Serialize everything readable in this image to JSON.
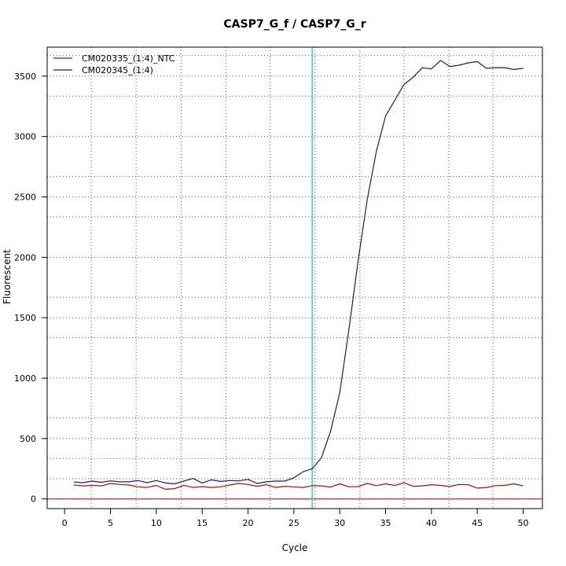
{
  "chart_data": {
    "type": "line",
    "title": "CASP7_G_f / CASP7_G_r",
    "xlabel": "Cycle",
    "ylabel": "Fluorescent",
    "xlim": [
      -1.9,
      52.1
    ],
    "ylim": [
      -80,
      3740
    ],
    "x_ticks": [
      0,
      5,
      10,
      15,
      20,
      25,
      30,
      35,
      40,
      45,
      50
    ],
    "y_ticks": [
      0,
      500,
      1000,
      1500,
      2000,
      2500,
      3000,
      3500
    ],
    "x_grid": [
      2.9,
      7.8,
      12.7,
      17.6,
      22.4,
      27.3,
      32.2,
      37.0,
      41.9,
      46.7
    ],
    "y_grid": [
      0,
      167,
      335,
      500,
      670,
      1000,
      1335,
      1500,
      1670,
      2000,
      2335,
      2500,
      2670,
      3000,
      3335,
      3500,
      3670
    ],
    "grid": true,
    "legend_position": "top-left",
    "threshold": {
      "x": 27,
      "color": "#00e5e5"
    },
    "baseline": {
      "y": 0,
      "color": "#b00000"
    },
    "series": [
      {
        "name": "CM020335_(1:4)_NTC",
        "color": "#a01010",
        "x": [
          1,
          2,
          3,
          4,
          5,
          6,
          7,
          8,
          9,
          10,
          11,
          12,
          13,
          14,
          15,
          16,
          17,
          18,
          19,
          20,
          21,
          22,
          23,
          24,
          25,
          26,
          27,
          28,
          29,
          30,
          31,
          32,
          33,
          34,
          35,
          36,
          37,
          38,
          39,
          40,
          41,
          42,
          43,
          44,
          45,
          46,
          47,
          48,
          49,
          50
        ],
        "values": [
          115,
          108,
          112,
          108,
          128,
          120,
          115,
          100,
          95,
          112,
          80,
          85,
          112,
          95,
          102,
          95,
          100,
          115,
          128,
          120,
          105,
          118,
          95,
          105,
          100,
          95,
          110,
          108,
          98,
          125,
          100,
          102,
          128,
          110,
          125,
          112,
          135,
          105,
          108,
          118,
          112,
          102,
          120,
          118,
          90,
          95,
          110,
          112,
          125,
          108
        ]
      },
      {
        "name": "CM020345_(1:4)",
        "color": "#1a1a80",
        "x": [
          1,
          2,
          3,
          4,
          5,
          6,
          7,
          8,
          9,
          10,
          11,
          12,
          13,
          14,
          15,
          16,
          17,
          18,
          19,
          20,
          21,
          22,
          23,
          24,
          25,
          26,
          27,
          28,
          29,
          30,
          31,
          32,
          33,
          34,
          35,
          36,
          37,
          38,
          39,
          40,
          41,
          42,
          43,
          44,
          45,
          46,
          47,
          48,
          49,
          50
        ],
        "values": [
          140,
          135,
          148,
          138,
          150,
          142,
          142,
          152,
          135,
          152,
          132,
          125,
          148,
          170,
          132,
          158,
          145,
          152,
          150,
          162,
          128,
          142,
          148,
          148,
          175,
          225,
          250,
          340,
          560,
          880,
          1400,
          1970,
          2480,
          2880,
          3170,
          3300,
          3430,
          3490,
          3570,
          3560,
          3630,
          3580,
          3590,
          3610,
          3620,
          3565,
          3570,
          3570,
          3555,
          3565
        ]
      }
    ]
  }
}
